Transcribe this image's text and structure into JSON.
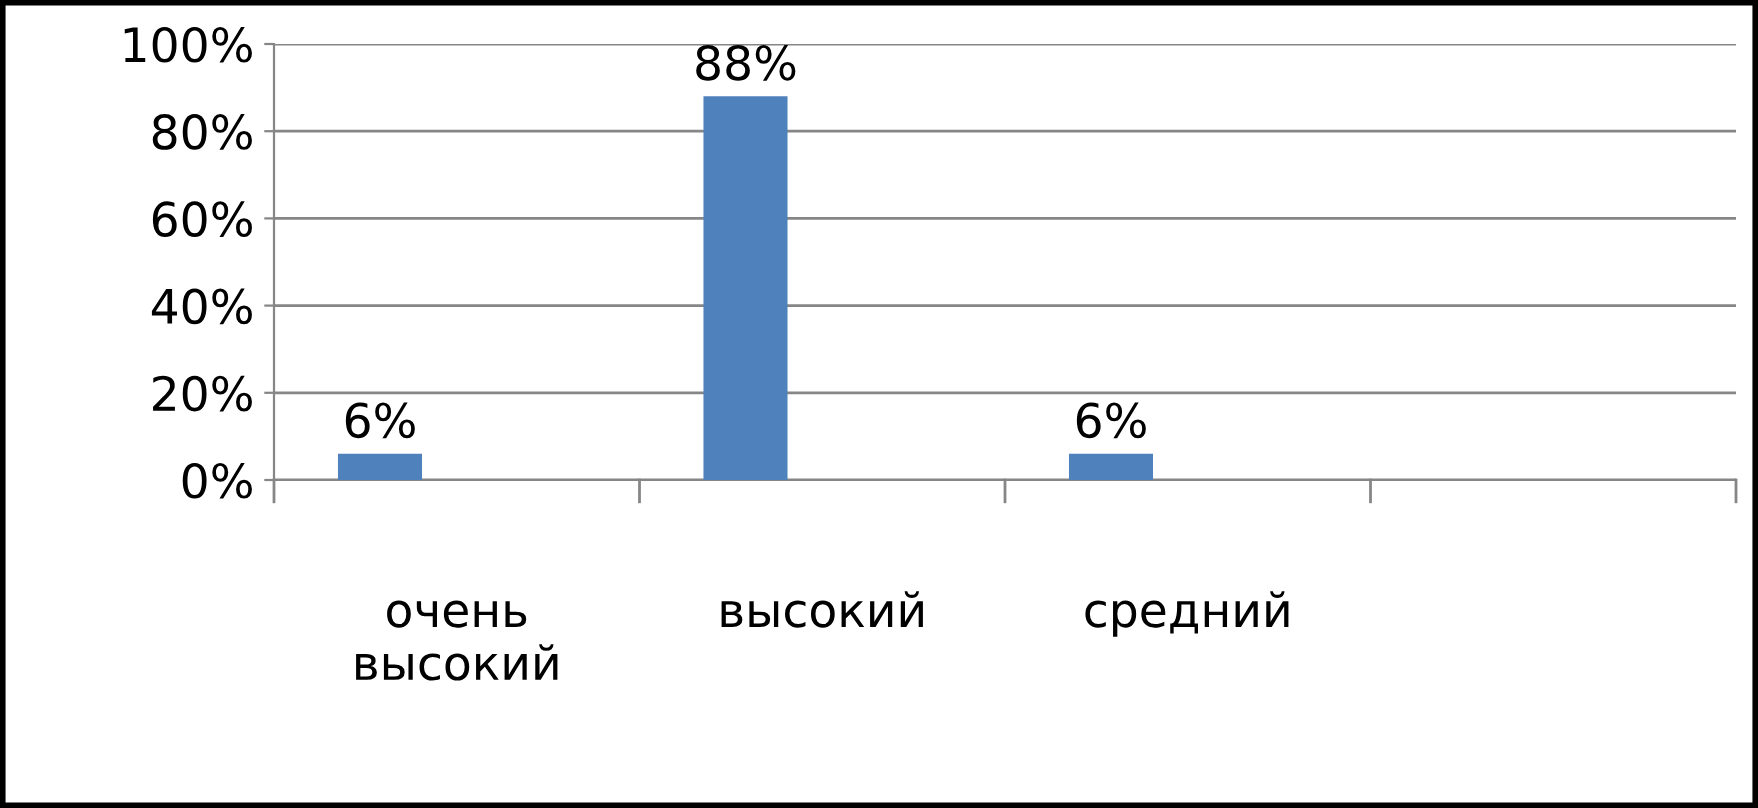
{
  "chart_data": {
    "type": "bar",
    "categories": [
      "очень высокий",
      "высокий",
      "средний",
      null
    ],
    "values": [
      6,
      88,
      6,
      null
    ],
    "value_labels": [
      "6%",
      "88%",
      "6%",
      null
    ],
    "color": "#4f81bd",
    "ylim": [
      0,
      100
    ],
    "yticks": [
      {
        "value": 0,
        "label": "0%"
      },
      {
        "value": 20,
        "label": "20%"
      },
      {
        "value": 40,
        "label": "40%"
      },
      {
        "value": 60,
        "label": "60%"
      },
      {
        "value": 80,
        "label": "80%"
      },
      {
        "value": 100,
        "label": "100%"
      }
    ],
    "grid": "y",
    "legend": false
  }
}
